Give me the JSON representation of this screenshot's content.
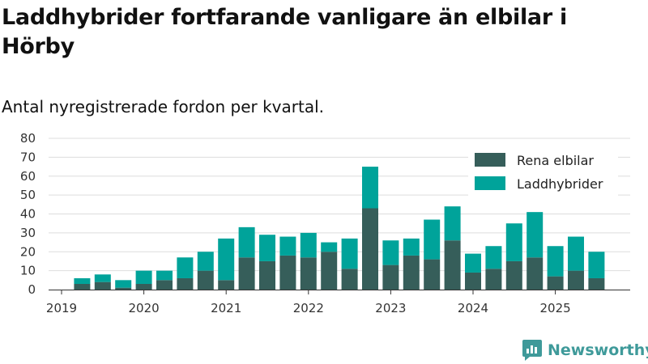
{
  "title": "Laddhybrider fortfarande vanligare än elbilar i Hörby",
  "subtitle": "Antal nyregistrerade fordon per kvartal.",
  "brand": {
    "name": "Newsworthy",
    "icon": "newsworthy-logo-icon"
  },
  "colors": {
    "elbilar": "#365e5a",
    "laddhybrider": "#00a39a",
    "grid": "#dddddd",
    "axis": "#333333"
  },
  "chart_data": {
    "type": "bar",
    "stacked": true,
    "title": "Laddhybrider fortfarande vanligare än elbilar i Hörby",
    "subtitle": "Antal nyregistrerade fordon per kvartal.",
    "xlabel": "",
    "ylabel": "",
    "ylim": [
      0,
      80
    ],
    "yticks": [
      0,
      10,
      20,
      30,
      40,
      50,
      60,
      70,
      80
    ],
    "grid": true,
    "legend_position": "top-right",
    "xtick_labels": [
      "2019",
      "2020",
      "2021",
      "2022",
      "2023",
      "2024",
      "2025"
    ],
    "xtick_indices": [
      0,
      4,
      8,
      12,
      16,
      20,
      24
    ],
    "categories": [
      "2019 Q1",
      "2019 Q2",
      "2019 Q3",
      "2019 Q4",
      "2020 Q1",
      "2020 Q2",
      "2020 Q3",
      "2020 Q4",
      "2021 Q1",
      "2021 Q2",
      "2021 Q3",
      "2021 Q4",
      "2022 Q1",
      "2022 Q2",
      "2022 Q3",
      "2022 Q4",
      "2023 Q1",
      "2023 Q2",
      "2023 Q3",
      "2023 Q4",
      "2024 Q1",
      "2024 Q2",
      "2024 Q3",
      "2024 Q4",
      "2025 Q1",
      "2025 Q2",
      "2025 Q3"
    ],
    "series": [
      {
        "name": "Rena elbilar",
        "values": [
          0,
          3,
          4,
          1,
          3,
          5,
          6,
          10,
          5,
          17,
          15,
          18,
          17,
          20,
          11,
          43,
          13,
          18,
          16,
          26,
          9,
          11,
          15,
          17,
          7,
          10,
          6
        ]
      },
      {
        "name": "Laddhybrider",
        "values": [
          0,
          3,
          4,
          4,
          7,
          5,
          11,
          10,
          22,
          16,
          14,
          10,
          13,
          5,
          16,
          22,
          13,
          9,
          21,
          18,
          10,
          12,
          20,
          24,
          16,
          18,
          14
        ]
      }
    ]
  }
}
